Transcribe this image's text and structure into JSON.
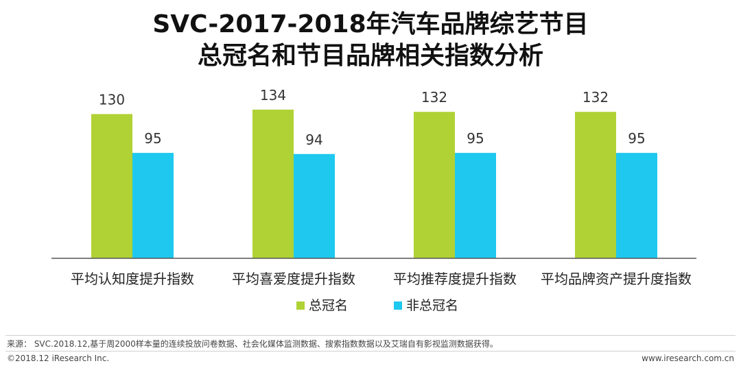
{
  "title_line1": "SVC-2017-2018年汽车品牌综艺节目",
  "title_line2": "总冠名和节目品牌相关指数分析",
  "chart_data": {
    "type": "bar",
    "categories": [
      "平均认知度提升指数",
      "平均喜爱度提升指数",
      "平均推荐度提升指数",
      "平均品牌资产提升度指数"
    ],
    "series": [
      {
        "name": "总冠名",
        "values": [
          130,
          134,
          132,
          132
        ],
        "color": "#b0d235"
      },
      {
        "name": "非总冠名",
        "values": [
          95,
          94,
          95,
          95
        ],
        "color": "#1ec8ef"
      }
    ],
    "ylim": [
      0,
      140
    ],
    "grid": false,
    "legend": "bottom",
    "data_labels": true
  },
  "footer": {
    "source": "来源： SVC.2018.12,基于周2000样本量的连续投放问卷数据、社会化媒体监测数据、搜索指数数据以及艾瑞自有影视监测数据获得。",
    "copyright": "©2018.12 iResearch Inc.",
    "website": "www.iresearch.com.cn"
  }
}
